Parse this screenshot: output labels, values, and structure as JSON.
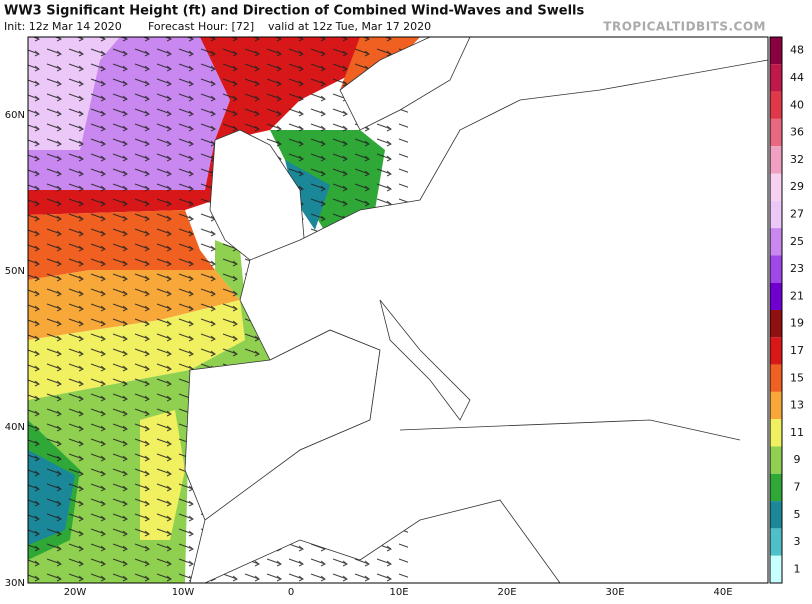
{
  "header": {
    "title": "WW3 Significant Height (ft) and Direction of Combined Wind-Waves and Swells",
    "init": "Init: 12z Mar 14 2020",
    "forecast_hour": "Forecast Hour: [72]",
    "valid": "valid at 12z Tue, Mar 17 2020",
    "watermark": "TROPICALTIDBITS.COM"
  },
  "map": {
    "lat_labels": [
      "60N",
      "50N",
      "40N",
      "30N"
    ],
    "lon_labels": [
      "20W",
      "10W",
      "0",
      "10E",
      "20E",
      "30E",
      "40E"
    ]
  },
  "colorbar": {
    "levels": [
      48,
      44,
      40,
      36,
      32,
      29,
      27,
      25,
      23,
      21,
      19,
      17,
      15,
      13,
      11,
      9,
      7,
      5,
      3,
      1
    ],
    "colors": [
      "#8a0040",
      "#c01848",
      "#e03848",
      "#e86880",
      "#f0a0c0",
      "#f8d0f0",
      "#ecc8f8",
      "#c888f0",
      "#a048e8",
      "#7000d0",
      "#901010",
      "#d81818",
      "#f06020",
      "#f8a838",
      "#f0f060",
      "#90d050",
      "#30a838",
      "#1a8898",
      "#50c0c8",
      "#c8ffff"
    ]
  }
}
